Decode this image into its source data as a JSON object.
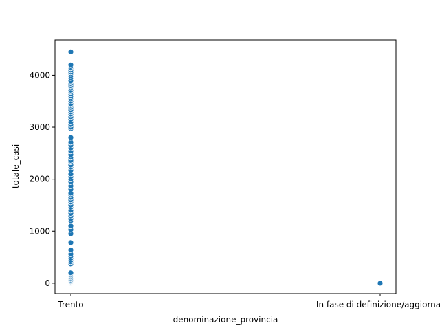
{
  "chart_data": {
    "type": "scatter",
    "title": "",
    "xlabel": "denominazione_provincia",
    "ylabel": "totale_casi",
    "categories": [
      "Trento",
      "In fase di definizione/aggiornamento"
    ],
    "category_tick_labels": [
      "Trento",
      "In fase di definizione/aggiornar"
    ],
    "ylim": [
      -200,
      4680
    ],
    "yticks": [
      0,
      1000,
      2000,
      3000,
      4000
    ],
    "ytick_labels": [
      "0",
      "1000",
      "2000",
      "3000",
      "4000"
    ],
    "grid": false,
    "legend": "none",
    "marker_color": "#1f77b4",
    "marker_edge_color": "#ffffff",
    "series": [
      {
        "x": "Trento",
        "values": [
          0,
          10,
          20,
          30,
          45,
          60,
          80,
          100,
          120,
          140,
          160,
          180,
          200,
          370,
          410,
          440,
          480,
          520,
          560,
          640,
          780,
          950,
          1030,
          1100,
          1200,
          1240,
          1290,
          1340,
          1400,
          1460,
          1500,
          1560,
          1600,
          1650,
          1700,
          1730,
          1800,
          1870,
          1950,
          2000,
          2050,
          2100,
          2170,
          2230,
          2270,
          2330,
          2360,
          2420,
          2470,
          2540,
          2600,
          2650,
          2710,
          2800,
          2970,
          3000,
          3050,
          3100,
          3150,
          3200,
          3250,
          3290,
          3330,
          3380,
          3420,
          3450,
          3500,
          3540,
          3570,
          3600,
          3640,
          3680,
          3710,
          3750,
          3780,
          3800,
          3840,
          3880,
          3900,
          3950,
          3990,
          4030,
          4060,
          4100,
          4140,
          4170,
          4200,
          4450
        ]
      },
      {
        "x": "In fase di definizione/aggiornamento",
        "values": [
          0
        ]
      }
    ]
  }
}
